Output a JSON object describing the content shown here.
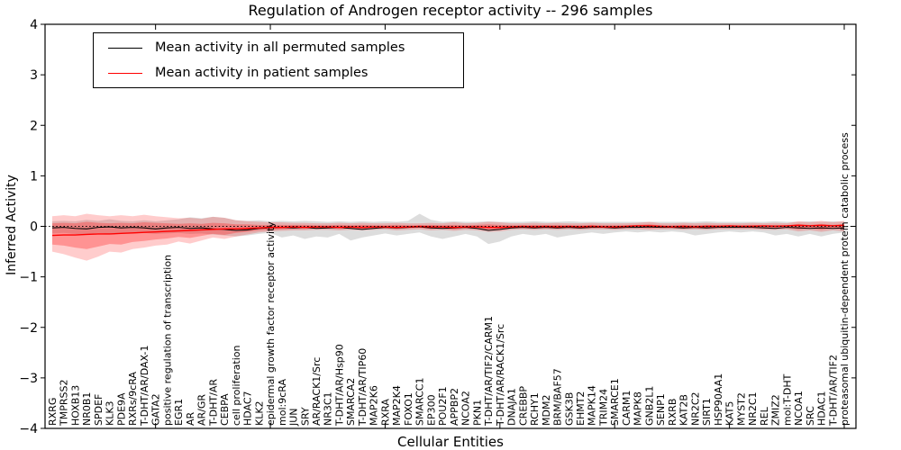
{
  "figure": {
    "title": "Regulation of Androgen receptor activity -- 296 samples",
    "background": "#ffffff"
  },
  "chart_data": {
    "type": "line",
    "title": "Regulation of Androgen receptor activity -- 296 samples",
    "xlabel": "Cellular Entities",
    "ylabel": "Inferred Activity",
    "ylim": [
      -4,
      4
    ],
    "ytick_labels": [
      "4",
      "3",
      "2",
      "1",
      "0",
      "−1",
      "−2",
      "−3",
      "−4"
    ],
    "ytick_values": [
      4,
      3,
      2,
      1,
      0,
      -1,
      -2,
      -3,
      -4
    ],
    "xtick_positions": [
      10,
      20,
      30,
      40,
      50,
      60,
      70
    ],
    "grid": false,
    "zero_line": {
      "y": 0,
      "style": "dotted",
      "color": "#000000"
    },
    "legend": {
      "position": "upper left",
      "entries": [
        {
          "label": "Mean activity in all permuted samples",
          "color": "#000000"
        },
        {
          "label": "Mean activity in patient samples",
          "color": "#ff0000"
        }
      ]
    },
    "categories": [
      "RXRG",
      "TMPRSS2",
      "HOXB13",
      "NR0B1",
      "SPDEF",
      "KLK3",
      "PDE9A",
      "RXRs/9cRA",
      "T-DHT/AR/DAX-1",
      "GATA2",
      "positive regulation of transcription",
      "EGR1",
      "AR",
      "AR/GR",
      "T-DHT/AR",
      "CEBPA",
      "cell proliferation",
      "HDAC7",
      "KLK2",
      "epidermal growth factor receptor activity",
      "mol:9cRA",
      "JUN",
      "SRY",
      "AR/RACK1/Src",
      "NR3C1",
      "T-DHT/AR/Hsp90",
      "SMARCA2",
      "T-DHT/AR/TIP60",
      "MAP2K6",
      "RXRA",
      "MAP2K4",
      "FOXO1",
      "SMARCC1",
      "EP300",
      "POU2F1",
      "APPBP2",
      "NCOA2",
      "PKN1",
      "T-DHT/AR/TIF2/CARM1",
      "T-DHT/AR/RACK1/Src",
      "DNAJA1",
      "CREBBP",
      "RCHY1",
      "MDM2",
      "BRM/BAF57",
      "GSK3B",
      "EHMT2",
      "MAPK14",
      "TRIM24",
      "SMARCE1",
      "CARM1",
      "MAPK8",
      "GNB2L1",
      "SENP1",
      "RXRB",
      "KAT2B",
      "NR2C2",
      "SIRT1",
      "HSP90AA1",
      "KAT5",
      "MYST2",
      "NR2C1",
      "REL",
      "ZMIZ2",
      "mol:T-DHT",
      "NCOA1",
      "SRC",
      "HDAC1",
      "T-DHT/AR/TIF2",
      "proteasomal ubiquitin-dependent protein catabolic process"
    ],
    "series": [
      {
        "name": "Mean activity in all permuted samples",
        "color": "#000000",
        "values": [
          -0.03,
          -0.02,
          -0.04,
          -0.05,
          -0.02,
          -0.01,
          -0.03,
          -0.02,
          -0.03,
          -0.05,
          -0.03,
          -0.02,
          -0.04,
          -0.03,
          -0.05,
          -0.06,
          -0.08,
          -0.07,
          -0.04,
          -0.03,
          -0.02,
          -0.03,
          -0.02,
          -0.04,
          -0.03,
          -0.02,
          -0.04,
          -0.06,
          -0.04,
          -0.02,
          -0.03,
          -0.02,
          -0.01,
          -0.03,
          -0.04,
          -0.03,
          -0.02,
          -0.04,
          -0.08,
          -0.06,
          -0.03,
          -0.02,
          -0.03,
          -0.02,
          -0.03,
          -0.02,
          -0.03,
          -0.02,
          -0.02,
          -0.03,
          -0.02,
          -0.02,
          -0.01,
          -0.02,
          -0.02,
          -0.03,
          -0.02,
          -0.03,
          -0.02,
          -0.02,
          -0.02,
          -0.02,
          -0.03,
          -0.04,
          -0.02,
          -0.03,
          -0.04,
          -0.03,
          -0.04,
          -0.03
        ]
      },
      {
        "name": "Mean activity in patient samples",
        "color": "#ff0000",
        "values": [
          -0.18,
          -0.17,
          -0.17,
          -0.16,
          -0.15,
          -0.15,
          -0.14,
          -0.13,
          -0.12,
          -0.11,
          -0.1,
          -0.09,
          -0.08,
          -0.07,
          -0.06,
          -0.05,
          -0.05,
          -0.04,
          -0.03,
          -0.02,
          -0.02,
          -0.01,
          -0.02,
          -0.01,
          -0.01,
          -0.02,
          -0.01,
          -0.02,
          -0.01,
          -0.01,
          -0.02,
          -0.01,
          0.0,
          -0.01,
          -0.01,
          -0.02,
          -0.01,
          -0.01,
          -0.02,
          -0.02,
          -0.01,
          0.0,
          -0.01,
          0.0,
          -0.01,
          0.0,
          -0.01,
          0.0,
          -0.01,
          -0.01,
          0.0,
          0.01,
          0.01,
          0.0,
          -0.01,
          0.0,
          -0.01,
          0.0,
          0.0,
          0.01,
          0.0,
          0.0,
          0.01,
          0.0,
          0.01,
          0.02,
          0.01,
          0.02,
          0.01,
          0.02
        ]
      }
    ],
    "bands": [
      {
        "name": "permuted-range",
        "color": "rgba(150,150,150,0.32)",
        "upper": [
          0.1,
          0.11,
          0.1,
          0.13,
          0.11,
          0.14,
          0.11,
          0.1,
          0.12,
          0.1,
          0.12,
          0.14,
          0.18,
          0.16,
          0.19,
          0.17,
          0.12,
          0.11,
          0.12,
          0.1,
          0.11,
          0.1,
          0.11,
          0.1,
          0.09,
          0.1,
          0.09,
          0.1,
          0.09,
          0.1,
          0.09,
          0.11,
          0.25,
          0.13,
          0.09,
          0.1,
          0.09,
          0.09,
          0.1,
          0.09,
          0.09,
          0.09,
          0.1,
          0.09,
          0.09,
          0.1,
          0.09,
          0.09,
          0.09,
          0.09,
          0.09,
          0.09,
          0.09,
          0.09,
          0.09,
          0.09,
          0.09,
          0.1,
          0.09,
          0.09,
          0.09,
          0.09,
          0.09,
          0.1,
          0.09,
          0.09,
          0.1,
          0.09,
          0.1,
          0.09
        ],
        "lower": [
          -0.14,
          -0.13,
          -0.15,
          -0.16,
          -0.13,
          -0.15,
          -0.13,
          -0.14,
          -0.13,
          -0.15,
          -0.14,
          -0.13,
          -0.15,
          -0.14,
          -0.16,
          -0.18,
          -0.2,
          -0.18,
          -0.15,
          -0.13,
          -0.22,
          -0.18,
          -0.25,
          -0.2,
          -0.22,
          -0.15,
          -0.28,
          -0.22,
          -0.18,
          -0.14,
          -0.18,
          -0.15,
          -0.12,
          -0.2,
          -0.25,
          -0.2,
          -0.15,
          -0.2,
          -0.35,
          -0.3,
          -0.2,
          -0.15,
          -0.18,
          -0.15,
          -0.22,
          -0.18,
          -0.15,
          -0.12,
          -0.15,
          -0.12,
          -0.1,
          -0.12,
          -0.1,
          -0.12,
          -0.1,
          -0.12,
          -0.18,
          -0.15,
          -0.12,
          -0.1,
          -0.12,
          -0.1,
          -0.12,
          -0.18,
          -0.15,
          -0.2,
          -0.15,
          -0.2,
          -0.15,
          -0.12
        ]
      },
      {
        "name": "patient-range-outer",
        "color": "rgba(255,0,0,0.20)",
        "upper": [
          0.2,
          0.22,
          0.2,
          0.25,
          0.22,
          0.2,
          0.22,
          0.2,
          0.23,
          0.2,
          0.18,
          0.16,
          0.17,
          0.15,
          0.19,
          0.17,
          0.12,
          0.1,
          0.09,
          0.08,
          0.08,
          0.07,
          0.07,
          0.06,
          0.06,
          0.07,
          0.06,
          0.07,
          0.06,
          0.06,
          0.07,
          0.06,
          0.06,
          0.07,
          0.06,
          0.08,
          0.06,
          0.07,
          0.09,
          0.08,
          0.06,
          0.06,
          0.07,
          0.06,
          0.07,
          0.06,
          0.06,
          0.07,
          0.06,
          0.06,
          0.06,
          0.07,
          0.09,
          0.06,
          0.06,
          0.07,
          0.06,
          0.07,
          0.06,
          0.06,
          0.06,
          0.07,
          0.06,
          0.07,
          0.06,
          0.1,
          0.08,
          0.11,
          0.08,
          0.11
        ],
        "lower": [
          -0.5,
          -0.55,
          -0.62,
          -0.68,
          -0.6,
          -0.5,
          -0.52,
          -0.45,
          -0.42,
          -0.38,
          -0.36,
          -0.3,
          -0.34,
          -0.28,
          -0.22,
          -0.25,
          -0.2,
          -0.16,
          -0.12,
          -0.1,
          -0.09,
          -0.08,
          -0.08,
          -0.07,
          -0.07,
          -0.08,
          -0.07,
          -0.08,
          -0.07,
          -0.06,
          -0.08,
          -0.07,
          -0.06,
          -0.08,
          -0.07,
          -0.09,
          -0.07,
          -0.08,
          -0.11,
          -0.1,
          -0.07,
          -0.06,
          -0.07,
          -0.06,
          -0.07,
          -0.06,
          -0.07,
          -0.06,
          -0.06,
          -0.07,
          -0.06,
          -0.06,
          -0.07,
          -0.06,
          -0.06,
          -0.07,
          -0.06,
          -0.07,
          -0.06,
          -0.06,
          -0.06,
          -0.06,
          -0.07,
          -0.07,
          -0.06,
          -0.1,
          -0.08,
          -0.11,
          -0.08,
          -0.1
        ]
      },
      {
        "name": "patient-range-inner",
        "color": "rgba(255,0,0,0.28)",
        "upper": [
          0.06,
          0.07,
          0.06,
          0.09,
          0.07,
          0.06,
          0.07,
          0.06,
          0.08,
          0.07,
          0.06,
          0.05,
          0.06,
          0.05,
          0.07,
          0.06,
          0.04,
          0.04,
          0.03,
          0.03,
          0.03,
          0.03,
          0.03,
          0.02,
          0.02,
          0.03,
          0.02,
          0.03,
          0.02,
          0.02,
          0.03,
          0.02,
          0.02,
          0.03,
          0.02,
          0.03,
          0.02,
          0.03,
          0.04,
          0.03,
          0.02,
          0.02,
          0.03,
          0.02,
          0.03,
          0.02,
          0.02,
          0.03,
          0.02,
          0.02,
          0.02,
          0.03,
          0.04,
          0.02,
          0.02,
          0.03,
          0.02,
          0.03,
          0.02,
          0.02,
          0.02,
          0.03,
          0.02,
          0.03,
          0.02,
          0.05,
          0.03,
          0.05,
          0.03,
          0.05
        ],
        "lower": [
          -0.36,
          -0.38,
          -0.42,
          -0.45,
          -0.4,
          -0.35,
          -0.36,
          -0.31,
          -0.29,
          -0.26,
          -0.24,
          -0.21,
          -0.23,
          -0.19,
          -0.15,
          -0.17,
          -0.13,
          -0.11,
          -0.08,
          -0.07,
          -0.06,
          -0.05,
          -0.05,
          -0.04,
          -0.04,
          -0.05,
          -0.04,
          -0.05,
          -0.04,
          -0.04,
          -0.05,
          -0.04,
          -0.03,
          -0.05,
          -0.04,
          -0.06,
          -0.04,
          -0.05,
          -0.07,
          -0.06,
          -0.04,
          -0.03,
          -0.04,
          -0.03,
          -0.04,
          -0.03,
          -0.04,
          -0.03,
          -0.03,
          -0.04,
          -0.03,
          -0.03,
          -0.04,
          -0.03,
          -0.03,
          -0.04,
          -0.03,
          -0.04,
          -0.03,
          -0.03,
          -0.03,
          -0.03,
          -0.04,
          -0.04,
          -0.03,
          -0.06,
          -0.04,
          -0.07,
          -0.04,
          -0.06
        ]
      }
    ]
  }
}
